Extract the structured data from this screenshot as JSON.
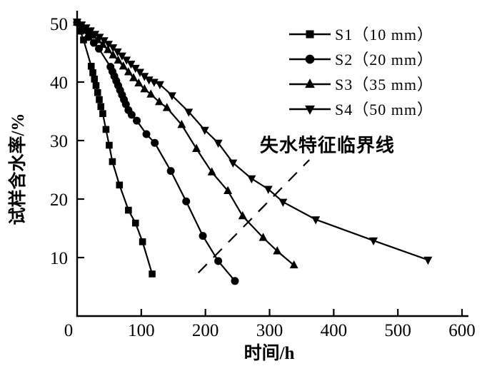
{
  "figure": {
    "background_color": "#ffffff",
    "ink_color": "#000000"
  },
  "chart_data": {
    "type": "line",
    "title": "",
    "xlabel": "时间/h",
    "ylabel": "试样含水率/%",
    "xlim": [
      0,
      600
    ],
    "ylim": [
      0,
      50
    ],
    "x_ticks": [
      0,
      100,
      200,
      300,
      400,
      500,
      600
    ],
    "y_ticks": [
      0,
      10,
      20,
      30,
      40,
      50
    ],
    "grid": false,
    "legend_position": "upper-right-inside",
    "series": [
      {
        "id": "s1",
        "name": "S1（10 mm）",
        "marker": "square",
        "points": [
          [
            0,
            50.2
          ],
          [
            5,
            48.7
          ],
          [
            10,
            47.2
          ],
          [
            22,
            42.7
          ],
          [
            24.5,
            41.6
          ],
          [
            27,
            40.5
          ],
          [
            29.5,
            39.4
          ],
          [
            32,
            38.2
          ],
          [
            34.5,
            37
          ],
          [
            37,
            35.8
          ],
          [
            40,
            34.6
          ],
          [
            45,
            31.9
          ],
          [
            50,
            29.2
          ],
          [
            55,
            26.4
          ],
          [
            66,
            22.4
          ],
          [
            80,
            18.1
          ],
          [
            91,
            15.9
          ],
          [
            102,
            12.7
          ],
          [
            117,
            7.2
          ]
        ]
      },
      {
        "id": "s2",
        "name": "S2（20 mm）",
        "marker": "circle",
        "points": [
          [
            0,
            50.2
          ],
          [
            9,
            48.9
          ],
          [
            18,
            47.7
          ],
          [
            26,
            46.7
          ],
          [
            34,
            45.7
          ],
          [
            52,
            42.6
          ],
          [
            55,
            41.8
          ],
          [
            58,
            41
          ],
          [
            61,
            40.2
          ],
          [
            64,
            39.4
          ],
          [
            67,
            38.6
          ],
          [
            70,
            37.8
          ],
          [
            73,
            37
          ],
          [
            76,
            36.2
          ],
          [
            80,
            35.2
          ],
          [
            85,
            34.4
          ],
          [
            93,
            33.4
          ],
          [
            108,
            31.1
          ],
          [
            121,
            29.6
          ],
          [
            146,
            24.8
          ],
          [
            170,
            19.6
          ],
          [
            196,
            13.7
          ],
          [
            220,
            9.4
          ],
          [
            246,
            6
          ]
        ]
      },
      {
        "id": "s3",
        "name": "S3（35 mm）",
        "marker": "triangle-up",
        "points": [
          [
            0,
            50.2
          ],
          [
            8,
            49.5
          ],
          [
            16,
            48.8
          ],
          [
            24,
            48
          ],
          [
            32,
            47.2
          ],
          [
            40,
            46.4
          ],
          [
            48,
            45.5
          ],
          [
            56,
            44.6
          ],
          [
            64,
            43.7
          ],
          [
            72,
            42.7
          ],
          [
            80,
            41.7
          ],
          [
            88,
            40.7
          ],
          [
            96,
            39.8
          ],
          [
            105,
            38.8
          ],
          [
            115,
            37.9
          ],
          [
            128,
            36.6
          ],
          [
            140,
            35.6
          ],
          [
            163,
            32.7
          ],
          [
            186,
            28.6
          ],
          [
            210,
            24.6
          ],
          [
            235,
            21.4
          ],
          [
            258,
            17.1
          ],
          [
            290,
            13.4
          ],
          [
            312,
            11.1
          ],
          [
            338,
            8.7
          ]
        ]
      },
      {
        "id": "s4",
        "name": "S4（50 mm）",
        "marker": "triangle-down",
        "points": [
          [
            0,
            50.3
          ],
          [
            7,
            49.8
          ],
          [
            14,
            49.3
          ],
          [
            21,
            48.8
          ],
          [
            28,
            48.2
          ],
          [
            35,
            47.7
          ],
          [
            42,
            47.1
          ],
          [
            49,
            46.5
          ],
          [
            56,
            45.9
          ],
          [
            63,
            45.2
          ],
          [
            70,
            44.5
          ],
          [
            77,
            43.8
          ],
          [
            84,
            43.1
          ],
          [
            91,
            42.4
          ],
          [
            98,
            41.7
          ],
          [
            105,
            41
          ],
          [
            112,
            40.4
          ],
          [
            120,
            40
          ],
          [
            129,
            39.6
          ],
          [
            148,
            37.7
          ],
          [
            174,
            34.9
          ],
          [
            199,
            31.8
          ],
          [
            220,
            29.6
          ],
          [
            243,
            26.2
          ],
          [
            272,
            23.5
          ],
          [
            298,
            21.7
          ],
          [
            321,
            19.5
          ],
          [
            372,
            16.5
          ],
          [
            462,
            12.9
          ],
          [
            547,
            9.6
          ]
        ]
      }
    ],
    "annotation": {
      "text": "失水特征临界线",
      "text_x": 390,
      "text_y": 29.2,
      "line_style": "dashed",
      "line": {
        "x1": 189,
        "y1": 7.4,
        "x2": 362,
        "y2": 26.7
      }
    }
  }
}
